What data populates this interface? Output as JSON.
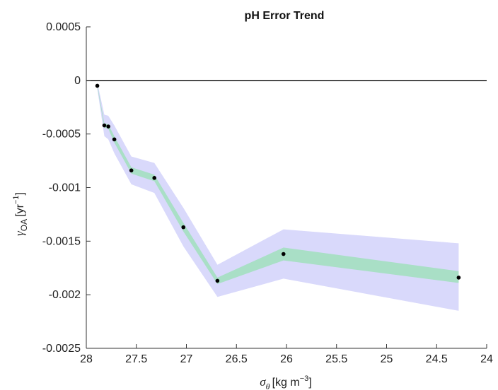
{
  "chart_data": {
    "type": "line",
    "title": "pH Error Trend",
    "xlabel": {
      "symbol": "σ",
      "symbol_sub": "θ",
      "unit_text": "[kg m",
      "unit_sup": "−3",
      "unit_close": "]"
    },
    "ylabel": {
      "symbol": "γ",
      "symbol_sub": "OA",
      "unit_text": "[yr",
      "unit_sup": "−1",
      "unit_close": "]"
    },
    "xlim": [
      28,
      24
    ],
    "x_reversed": true,
    "ylim": [
      -0.0025,
      0.0005
    ],
    "xticks": [
      28,
      27.5,
      27,
      26.5,
      26,
      25.5,
      25,
      24.5,
      24
    ],
    "xtick_labels": [
      "28",
      "27.5",
      "27",
      "26.5",
      "26",
      "25.5",
      "25",
      "24.5",
      "24"
    ],
    "yticks": [
      0.0005,
      0,
      -0.0005,
      -0.001,
      -0.0015,
      -0.002,
      -0.0025
    ],
    "ytick_labels": [
      "0.0005",
      "0",
      "-0.0005",
      "-0.001",
      "-0.0015",
      "-0.002",
      "-0.0025"
    ],
    "zero_line": true,
    "grid": false,
    "colors": {
      "outer_band": "#d9d9fb",
      "inner_band": "#a9dfc6",
      "points": "#000000",
      "zero_line": "#000000",
      "axes": "#333333"
    },
    "series": [
      {
        "x": [
          27.89,
          27.82,
          27.78,
          27.72,
          27.55,
          27.32,
          27.03,
          26.69,
          26.03,
          24.28
        ],
        "y": [
          -5e-05,
          -0.00042,
          -0.00043,
          -0.00055,
          -0.00084,
          -0.00091,
          -0.00137,
          -0.00187,
          -0.00162,
          -0.00184
        ]
      }
    ],
    "outer_band": {
      "x": [
        27.89,
        27.82,
        27.78,
        27.72,
        27.55,
        27.32,
        27.03,
        26.69,
        26.03,
        24.28
      ],
      "lower": [
        -8e-05,
        -0.00052,
        -0.00055,
        -0.00068,
        -0.00097,
        -0.00105,
        -0.00155,
        -0.00202,
        -0.00185,
        -0.00215
      ],
      "upper": [
        -2e-05,
        -0.00032,
        -0.00033,
        -0.00042,
        -0.00071,
        -0.00077,
        -0.00119,
        -0.00172,
        -0.00139,
        -0.00152
      ]
    },
    "inner_band": {
      "x": [
        27.89,
        27.82,
        27.78,
        27.72,
        27.55,
        27.32,
        27.03,
        26.69,
        26.03,
        24.28
      ],
      "lower": [
        -6e-05,
        -0.00044,
        -0.00045,
        -0.00058,
        -0.00087,
        -0.00094,
        -0.00141,
        -0.0019,
        -0.00168,
        -0.00189
      ],
      "upper": [
        -4e-05,
        -0.0004,
        -0.00041,
        -0.00052,
        -0.00081,
        -0.00088,
        -0.00133,
        -0.00184,
        -0.00156,
        -0.00178
      ]
    }
  }
}
